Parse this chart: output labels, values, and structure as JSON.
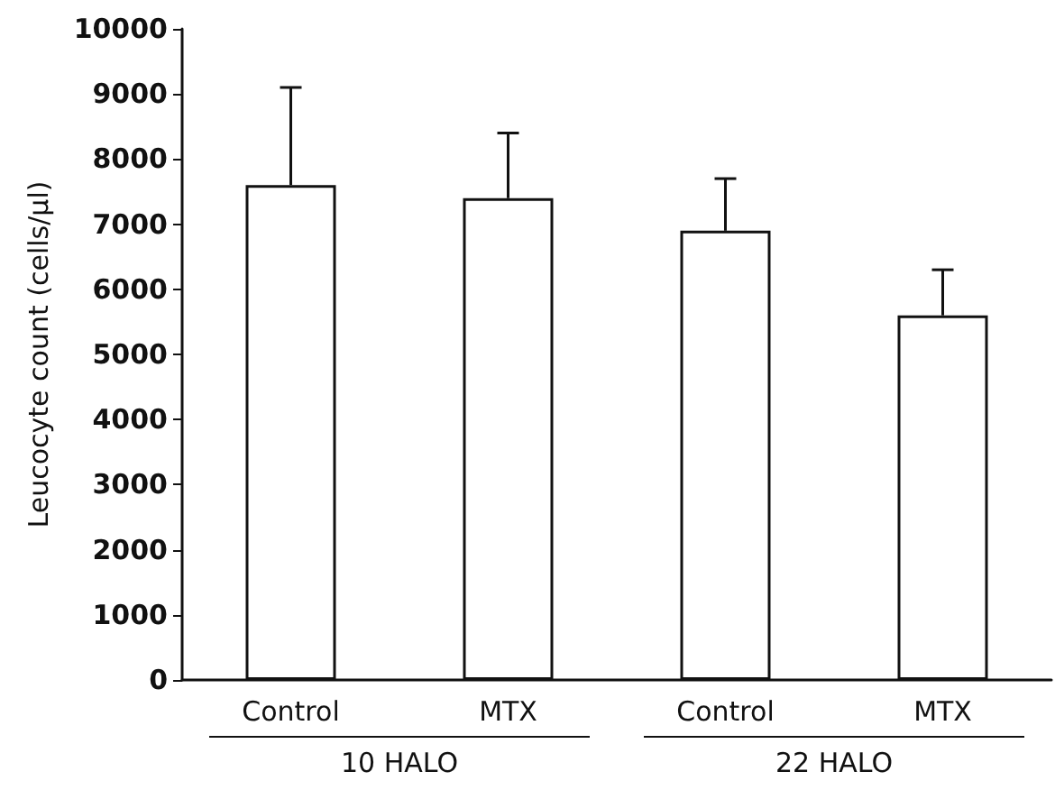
{
  "chart_data": {
    "type": "bar",
    "ylabel": "Leucocyte count (cells/μl)",
    "categories": [
      "Control",
      "MTX",
      "Control",
      "MTX"
    ],
    "values": [
      7600,
      7400,
      6900,
      5600
    ],
    "errors": [
      [
        7600,
        9100
      ],
      [
        7400,
        8400
      ],
      [
        6900,
        7700
      ],
      [
        5600,
        6300
      ]
    ],
    "color": "#ffffff",
    "ylim": [
      0,
      10000
    ],
    "yticks": [
      0,
      1000,
      2000,
      3000,
      4000,
      5000,
      6000,
      7000,
      8000,
      9000,
      10000
    ],
    "grid": false,
    "annotations": [
      "10 HALO",
      "22 HALO"
    ]
  }
}
